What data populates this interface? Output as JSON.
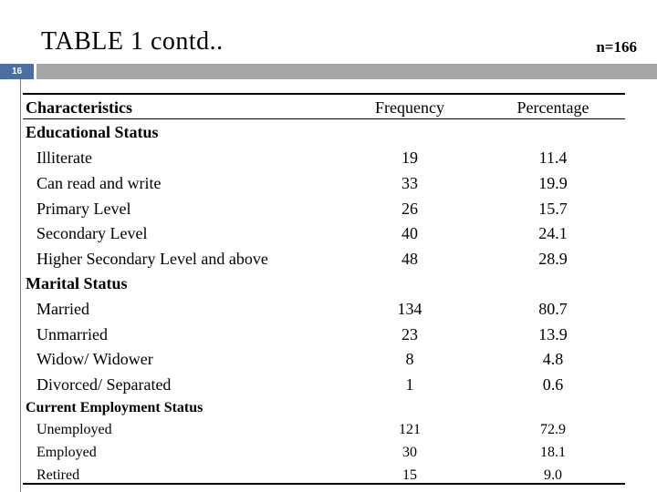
{
  "title": "TABLE 1 contd..",
  "sample_size": "n=166",
  "slide_number": "16",
  "table": {
    "headers": [
      "Characteristics",
      "Frequency",
      "Percentage"
    ],
    "sections": [
      {
        "label": "Educational Status",
        "rows": [
          [
            "Illiterate",
            "19",
            "11.4"
          ],
          [
            "Can read and write",
            "33",
            "19.9"
          ],
          [
            "Primary Level",
            "26",
            "15.7"
          ],
          [
            "Secondary Level",
            "40",
            "24.1"
          ],
          [
            "Higher Secondary Level and above",
            "48",
            "28.9"
          ]
        ]
      },
      {
        "label": "Marital Status",
        "rows": [
          [
            "Married",
            "134",
            "80.7"
          ],
          [
            "Unmarried",
            "23",
            "13.9"
          ],
          [
            "Widow/ Widower",
            "8",
            "4.8"
          ],
          [
            "Divorced/ Separated",
            "1",
            "0.6"
          ]
        ]
      },
      {
        "label": "Current Employment Status",
        "rows": [
          [
            "Unemployed",
            "121",
            "72.9"
          ],
          [
            "Employed",
            "30",
            "18.1"
          ],
          [
            "Retired",
            "15",
            "9.0"
          ]
        ]
      }
    ]
  }
}
